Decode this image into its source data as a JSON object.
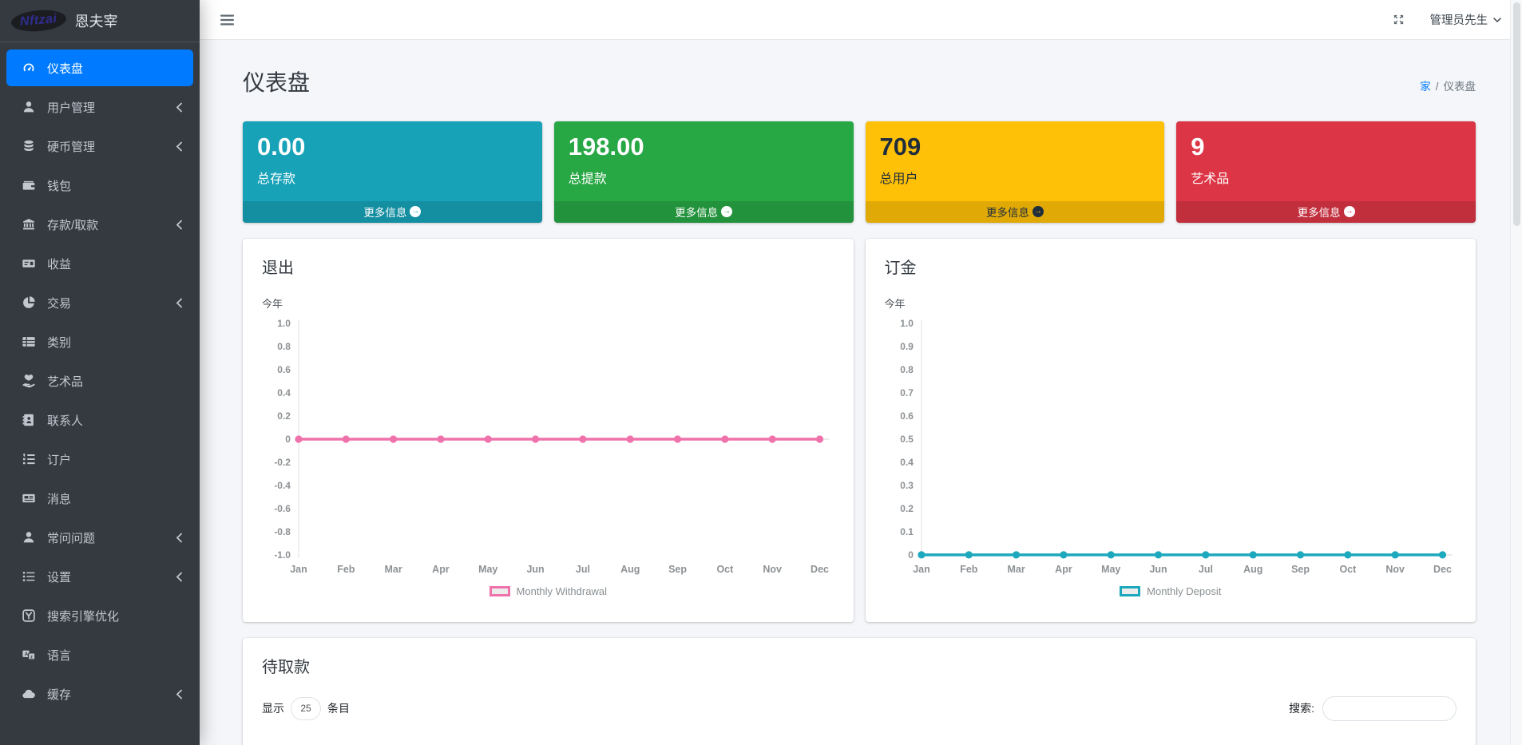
{
  "brand": {
    "logo": "Nftzai",
    "name": "恩夫宰"
  },
  "topbar": {
    "user": "管理员先生"
  },
  "sidebar": {
    "items": [
      {
        "slug": "dashboard",
        "label": "仪表盘",
        "icon": "gauge-icon",
        "active": true,
        "chevron": false
      },
      {
        "slug": "user-management",
        "label": "用户管理",
        "icon": "user-icon",
        "active": false,
        "chevron": true
      },
      {
        "slug": "coin-management",
        "label": "硬币管理",
        "icon": "coins-icon",
        "active": false,
        "chevron": true
      },
      {
        "slug": "wallet",
        "label": "钱包",
        "icon": "wallet-icon",
        "active": false,
        "chevron": false
      },
      {
        "slug": "deposit-withdraw",
        "label": "存款/取款",
        "icon": "bank-icon",
        "active": false,
        "chevron": true
      },
      {
        "slug": "earnings",
        "label": "收益",
        "icon": "money-check-icon",
        "active": false,
        "chevron": false
      },
      {
        "slug": "transactions",
        "label": "交易",
        "icon": "pie-chart-icon",
        "active": false,
        "chevron": true
      },
      {
        "slug": "categories",
        "label": "类别",
        "icon": "category-list-icon",
        "active": false,
        "chevron": false
      },
      {
        "slug": "artworks",
        "label": "艺术品",
        "icon": "hand-heart-icon",
        "active": false,
        "chevron": false
      },
      {
        "slug": "contacts",
        "label": "联系人",
        "icon": "address-book-icon",
        "active": false,
        "chevron": false
      },
      {
        "slug": "subscribers",
        "label": "订户",
        "icon": "list-ol-icon",
        "active": false,
        "chevron": false
      },
      {
        "slug": "messages",
        "label": "消息",
        "icon": "newspaper-icon",
        "active": false,
        "chevron": false
      },
      {
        "slug": "faq",
        "label": "常问问题",
        "icon": "user-icon",
        "active": false,
        "chevron": true
      },
      {
        "slug": "settings",
        "label": "设置",
        "icon": "list-icon",
        "active": false,
        "chevron": true
      },
      {
        "slug": "seo",
        "label": "搜索引擎优化",
        "icon": "seo-icon",
        "active": false,
        "chevron": false
      },
      {
        "slug": "language",
        "label": "语言",
        "icon": "language-icon",
        "active": false,
        "chevron": false
      },
      {
        "slug": "cache",
        "label": "缓存",
        "icon": "cloud-icon",
        "active": false,
        "chevron": true
      }
    ]
  },
  "page": {
    "title": "仪表盘",
    "breadcrumb_home": "家",
    "breadcrumb_sep": "/",
    "breadcrumb_current": "仪表盘"
  },
  "stats": [
    {
      "value": "0.00",
      "label": "总存款",
      "more": "更多信息",
      "color": "#17a2b8",
      "text": "light"
    },
    {
      "value": "198.00",
      "label": "总提款",
      "more": "更多信息",
      "color": "#28a745",
      "text": "light"
    },
    {
      "value": "709",
      "label": "总用户",
      "more": "更多信息",
      "color": "#ffc107",
      "text": "dark"
    },
    {
      "value": "9",
      "label": "艺术品",
      "more": "更多信息",
      "color": "#dc3545",
      "text": "light"
    }
  ],
  "chart_data": [
    {
      "type": "line",
      "title": "退出",
      "subtitle": "今年",
      "categories": [
        "Jan",
        "Feb",
        "Mar",
        "Apr",
        "May",
        "Jun",
        "Jul",
        "Aug",
        "Sep",
        "Oct",
        "Nov",
        "Dec"
      ],
      "series": [
        {
          "name": "Monthly Withdrawal",
          "values": [
            0,
            0,
            0,
            0,
            0,
            0,
            0,
            0,
            0,
            0,
            0,
            0
          ]
        }
      ],
      "xlabel": "",
      "ylabel": "",
      "ylim": [
        -1.0,
        1.0
      ],
      "yticks": [
        "1.0",
        "0.8",
        "0.6",
        "0.4",
        "0.2",
        "0",
        "-0.2",
        "-0.4",
        "-0.6",
        "-0.8",
        "-1.0"
      ],
      "color": "#f072ab",
      "grid": false,
      "legend_position": "bottom"
    },
    {
      "type": "line",
      "title": "订金",
      "subtitle": "今年",
      "categories": [
        "Jan",
        "Feb",
        "Mar",
        "Apr",
        "May",
        "Jun",
        "Jul",
        "Aug",
        "Sep",
        "Oct",
        "Nov",
        "Dec"
      ],
      "series": [
        {
          "name": "Monthly Deposit",
          "values": [
            0,
            0,
            0,
            0,
            0,
            0,
            0,
            0,
            0,
            0,
            0,
            0
          ]
        }
      ],
      "xlabel": "",
      "ylabel": "",
      "ylim": [
        0,
        1.0
      ],
      "yticks": [
        "1.0",
        "0.9",
        "0.8",
        "0.7",
        "0.6",
        "0.5",
        "0.4",
        "0.3",
        "0.2",
        "0.1",
        "0"
      ],
      "color": "#1ca8bd",
      "grid": false,
      "legend_position": "bottom"
    }
  ],
  "pending": {
    "title": "待取款",
    "show_label": "显示",
    "entries_value": "25",
    "entries_label": "条目",
    "search_label": "搜索:"
  }
}
